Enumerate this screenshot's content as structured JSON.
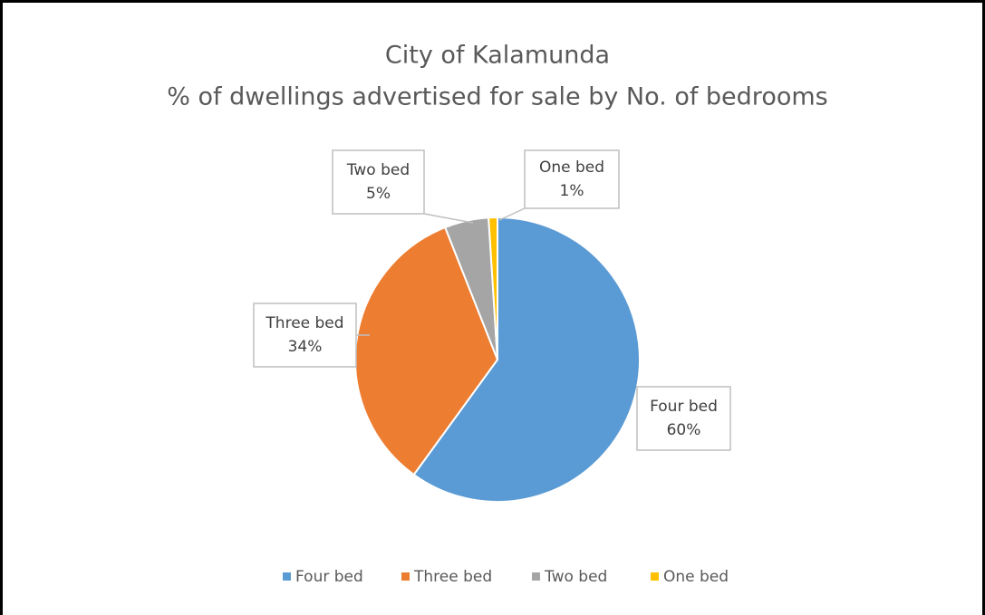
{
  "chart_data": {
    "type": "pie",
    "title": "City of Kalamunda",
    "subtitle": "% of dwellings advertised for sale by No. of bedrooms",
    "categories": [
      "Four bed",
      "Three bed",
      "Two bed",
      "One bed"
    ],
    "values": [
      60,
      34,
      5,
      1
    ],
    "value_labels": [
      "60%",
      "34%",
      "5%",
      "1%"
    ],
    "colors": [
      "#5b9bd5",
      "#ed7d31",
      "#a5a5a5",
      "#ffc000"
    ],
    "legend": "bottom"
  }
}
